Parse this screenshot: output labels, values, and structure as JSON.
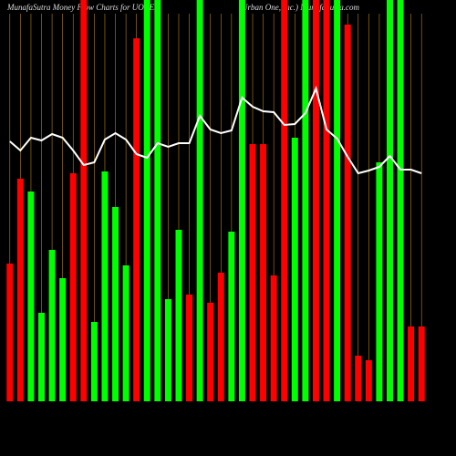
{
  "chart_data": {
    "type": "bar",
    "title": "MunafaSutra  Money Flow  Charts for UONEK",
    "subtitle": "(Urban  One,  Inc.)  MunafaSutra.com",
    "values": [
      151,
      244,
      230,
      97,
      166,
      135,
      250,
      440,
      87,
      252,
      213,
      149,
      398,
      440,
      440,
      112,
      188,
      117,
      440,
      108,
      141,
      186,
      440,
      282,
      282,
      138,
      440,
      289,
      440,
      440,
      440,
      440,
      413,
      50,
      45,
      262,
      440,
      440,
      82,
      82
    ],
    "colors": [
      "#ff0000",
      "#ff0000",
      "#00ff00",
      "#00ff00",
      "#00ff00",
      "#00ff00",
      "#ff0000",
      "#ff0000",
      "#00ff00",
      "#00ff00",
      "#00ff00",
      "#00ff00",
      "#ff0000",
      "#00ff00",
      "#00ff00",
      "#00ff00",
      "#00ff00",
      "#ff0000",
      "#00ff00",
      "#ff0000",
      "#ff0000",
      "#00ff00",
      "#00ff00",
      "#ff0000",
      "#ff0000",
      "#ff0000",
      "#ff0000",
      "#00ff00",
      "#00ff00",
      "#ff0000",
      "#ff0000",
      "#00ff00",
      "#ff0000",
      "#ff0000",
      "#ff0000",
      "#00ff00",
      "#00ff00",
      "#00ff00",
      "#ff0000",
      "#ff0000"
    ],
    "line": {
      "color": "#ffffff",
      "values": [
        285,
        275,
        289,
        286,
        293,
        289,
        275,
        259,
        262,
        287,
        294,
        287,
        271,
        267,
        283,
        279,
        283,
        283,
        313,
        298,
        294,
        297,
        333,
        323,
        318,
        317,
        303,
        304,
        316,
        343,
        298,
        288,
        268,
        250,
        253,
        257,
        269,
        254,
        254,
        250
      ]
    },
    "guide_color": "#b8860b",
    "ylim": [
      0,
      440
    ]
  }
}
